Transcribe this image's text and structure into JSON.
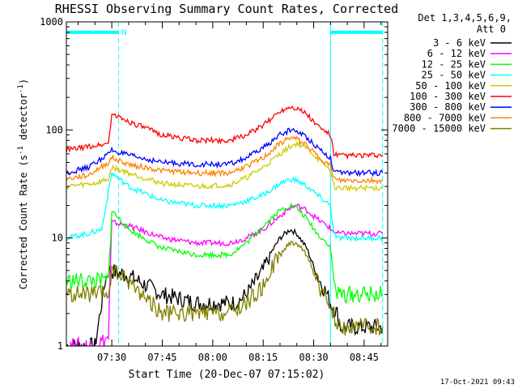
{
  "chart_data": {
    "type": "line",
    "title": "RHESSI Observing Summary Count Rates, Corrected",
    "xlabel": "Start Time (20-Dec-07 07:15:02)",
    "ylabel": "Corrected Count Rate (s⁻¹ detector⁻¹)",
    "ylabel_parts": {
      "base": "Corrected Count Rate (s",
      "sup1": "-1",
      "mid": " detector",
      "sup2": "-1",
      "end": ")"
    },
    "x_units": "minutes since 07:15",
    "xlim": [
      1.5,
      97
    ],
    "ylim": [
      1,
      1000
    ],
    "yscale": "log",
    "x_ticks": [
      {
        "value": 15,
        "label": "07:30"
      },
      {
        "value": 30,
        "label": "07:45"
      },
      {
        "value": 45,
        "label": "08:00"
      },
      {
        "value": 60,
        "label": "08:15"
      },
      {
        "value": 75,
        "label": "08:30"
      },
      {
        "value": 90,
        "label": "08:45"
      }
    ],
    "y_ticks": [
      {
        "value": 1,
        "label": "1"
      },
      {
        "value": 10,
        "label": "10"
      },
      {
        "value": 100,
        "label": "100"
      },
      {
        "value": 1000,
        "label": "1000"
      }
    ],
    "legend": {
      "header": [
        "Det 1,3,4,5,6,9,",
        "Att 0"
      ],
      "position": "right"
    },
    "markers": {
      "vertical_lines": [
        {
          "x": 1.5,
          "style": "solid",
          "color": "#00ffff"
        },
        {
          "x": 17,
          "style": "dashed",
          "color": "#00ffff"
        },
        {
          "x": 80,
          "style": "solid",
          "color": "#00ffff"
        },
        {
          "x": 95.5,
          "style": "dashed",
          "color": "#00ffff"
        }
      ],
      "night_bars": [
        {
          "x": [
            1.5,
            17
          ],
          "y": 800
        },
        {
          "x": [
            80,
            95.5
          ],
          "y": 800
        }
      ],
      "flag_label": {
        "text": "N",
        "x": 17.5
      }
    },
    "series": [
      {
        "name": "3 - 6 keV",
        "color": "#000000",
        "x": [
          1.5,
          10,
          13,
          14,
          20,
          30,
          40,
          50,
          52,
          55,
          60,
          62,
          65,
          68,
          70,
          73,
          76,
          79,
          80,
          82,
          83,
          90,
          95.5
        ],
        "y": [
          1,
          1,
          4,
          5,
          4.5,
          3,
          2.5,
          2.5,
          2.5,
          3,
          5,
          7,
          10,
          12,
          11,
          8,
          4.5,
          3,
          2.5,
          2,
          1.5,
          1.5,
          1.5
        ]
      },
      {
        "name": "6 - 12 keV",
        "color": "#ff00ff",
        "x": [
          1.5,
          10,
          14,
          15,
          20,
          30,
          40,
          50,
          55,
          60,
          65,
          68,
          70,
          73,
          76,
          79,
          80,
          82,
          90,
          95.5
        ],
        "y": [
          1,
          1,
          1.2,
          14,
          13,
          10,
          9,
          9,
          10,
          12,
          16,
          19,
          20,
          18,
          15,
          13,
          12,
          11,
          11,
          11
        ]
      },
      {
        "name": "12 - 25 keV",
        "color": "#00ff00",
        "x": [
          1.5,
          14,
          15,
          20,
          30,
          40,
          50,
          55,
          60,
          65,
          68,
          70,
          73,
          76,
          79,
          80,
          81,
          82,
          90,
          95.5
        ],
        "y": [
          4,
          4,
          18,
          12,
          8,
          7,
          7,
          9,
          13,
          18,
          20,
          19,
          15,
          11,
          9,
          8,
          4,
          3,
          3,
          3
        ]
      },
      {
        "name": "25 - 50 keV",
        "color": "#00ffff",
        "x": [
          1.5,
          8,
          12,
          15,
          20,
          30,
          40,
          50,
          55,
          60,
          65,
          68,
          70,
          73,
          76,
          80,
          81,
          82,
          90,
          95.5
        ],
        "y": [
          10,
          11,
          12,
          40,
          30,
          22,
          20,
          20,
          22,
          25,
          32,
          35,
          34,
          30,
          25,
          20,
          11,
          10,
          10,
          10
        ]
      },
      {
        "name": "50 - 100 keV",
        "color": "#cccc00",
        "x": [
          1.5,
          10,
          14,
          15,
          20,
          30,
          40,
          50,
          55,
          60,
          65,
          68,
          70,
          73,
          76,
          80,
          81,
          82,
          90,
          95.5
        ],
        "y": [
          30,
          32,
          35,
          45,
          40,
          32,
          30,
          31,
          36,
          45,
          60,
          70,
          75,
          68,
          55,
          42,
          30,
          29,
          29,
          29
        ]
      },
      {
        "name": "100 - 300 keV",
        "color": "#ff0000",
        "x": [
          1.5,
          8,
          14,
          15,
          20,
          30,
          40,
          50,
          55,
          60,
          65,
          68,
          70,
          73,
          76,
          80,
          81,
          82,
          90,
          95.5
        ],
        "y": [
          65,
          70,
          75,
          140,
          120,
          90,
          80,
          80,
          90,
          110,
          150,
          165,
          160,
          140,
          110,
          90,
          60,
          58,
          58,
          58
        ]
      },
      {
        "name": "300 - 800 keV",
        "color": "#0000ff",
        "x": [
          1.5,
          8,
          14,
          15,
          20,
          30,
          40,
          50,
          55,
          60,
          65,
          68,
          70,
          73,
          76,
          80,
          81,
          82,
          90,
          95.5
        ],
        "y": [
          40,
          45,
          60,
          65,
          58,
          50,
          48,
          48,
          55,
          68,
          90,
          100,
          98,
          85,
          70,
          55,
          42,
          40,
          40,
          40
        ]
      },
      {
        "name": "800 - 7000 keV",
        "color": "#ff8000",
        "x": [
          1.5,
          8,
          14,
          15,
          20,
          30,
          40,
          50,
          55,
          60,
          65,
          68,
          70,
          73,
          76,
          80,
          81,
          82,
          90,
          95.5
        ],
        "y": [
          35,
          38,
          50,
          55,
          48,
          42,
          40,
          40,
          46,
          55,
          75,
          85,
          82,
          72,
          58,
          46,
          36,
          34,
          34,
          34
        ]
      },
      {
        "name": "7000 - 15000 keV",
        "color": "#808000",
        "x": [
          1.5,
          14,
          15,
          20,
          30,
          40,
          50,
          55,
          60,
          62,
          65,
          68,
          70,
          73,
          76,
          79,
          80,
          81,
          82,
          90,
          95.5
        ],
        "y": [
          3,
          3,
          5,
          4,
          2,
          2,
          2,
          2.5,
          3.5,
          5,
          7,
          9,
          9,
          7,
          4,
          2.5,
          2,
          2,
          1.5,
          1.5,
          1.5
        ]
      }
    ]
  },
  "footer": {
    "timestamp": "17-Oct-2021 09:43"
  }
}
